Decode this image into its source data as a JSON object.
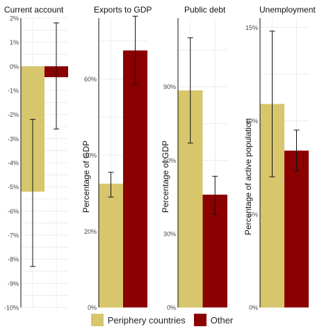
{
  "colors": {
    "periphery": "#D7C66B",
    "other": "#8B0000"
  },
  "legend": {
    "periphery_label": "Periphery countries",
    "other_label": "Other"
  },
  "chart_data": [
    {
      "type": "bar",
      "title": "Current account",
      "ylabel": "",
      "ylim": [
        -10,
        2
      ],
      "ticks": [
        2,
        1,
        0,
        -1,
        -2,
        -3,
        -4,
        -5,
        -6,
        -7,
        -8,
        -9,
        -10
      ],
      "tick_labels": [
        "2%",
        "1%",
        "0%",
        "-1%",
        "-2%",
        "-3%",
        "-4%",
        "-5%",
        "-6%",
        "-7%",
        "-8%",
        "-9%",
        "-10%"
      ],
      "series": [
        {
          "value": -5.2,
          "low": -8.3,
          "high": -2.2
        },
        {
          "value": -0.45,
          "low": -2.6,
          "high": 1.8
        }
      ]
    },
    {
      "type": "bar",
      "title": "Exports to GDP",
      "ylabel": "Percentage of GDP",
      "ylim": [
        0,
        76
      ],
      "ticks": [
        0,
        20,
        40,
        60
      ],
      "tick_labels": [
        "0%",
        "20%",
        "40%",
        "60%"
      ],
      "series": [
        {
          "value": 32.5,
          "low": 29.0,
          "high": 35.5
        },
        {
          "value": 67.5,
          "low": 58.5,
          "high": 76.5
        }
      ]
    },
    {
      "type": "bar",
      "title": "Public debt",
      "ylabel": "Percentage of GDP",
      "ylim": [
        0,
        118
      ],
      "ticks": [
        0,
        30,
        60,
        90
      ],
      "tick_labels": [
        "0%",
        "30%",
        "60%",
        "90%"
      ],
      "series": [
        {
          "value": 88.5,
          "low": 67.0,
          "high": 110.0
        },
        {
          "value": 46.0,
          "low": 38.0,
          "high": 53.5
        }
      ]
    },
    {
      "type": "bar",
      "title": "Unemployment",
      "ylabel": "Percentage of active population",
      "ylim": [
        0,
        15.5
      ],
      "ticks": [
        0,
        5,
        10,
        15
      ],
      "tick_labels": [
        "0%",
        "5%",
        "10%",
        "15%"
      ],
      "series": [
        {
          "value": 10.9,
          "low": 7.0,
          "high": 14.8
        },
        {
          "value": 8.4,
          "low": 7.3,
          "high": 9.5
        }
      ]
    }
  ]
}
